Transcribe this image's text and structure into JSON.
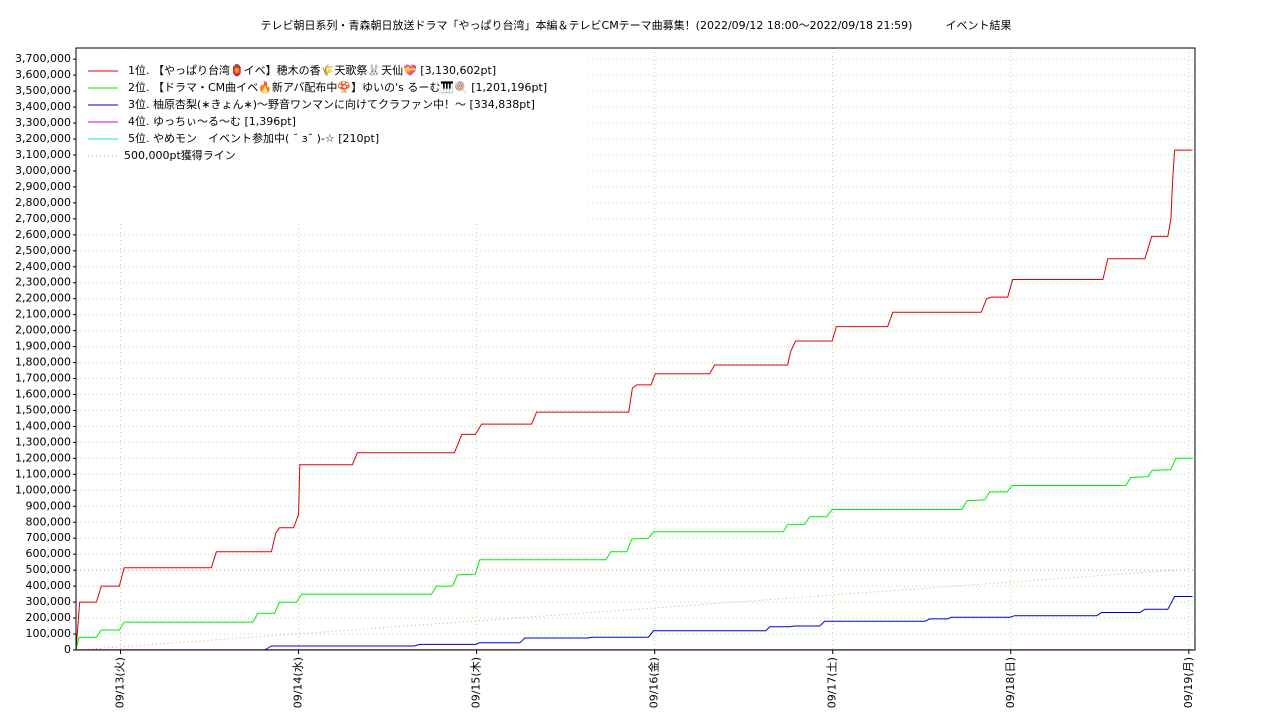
{
  "chart_data": {
    "type": "line",
    "title": "テレビ朝日系列・青森朝日放送ドラマ「やっぱり台湾」本編＆テレビCMテーマ曲募集！(2022/09/12 18:00～2022/09/18 21:59)　　　イベント結果",
    "xlim": [
      "09/12 18:00",
      "09/19 00:50"
    ],
    "xticks": [
      {
        "value": "09/13 00:00",
        "label": "09/13(火)"
      },
      {
        "value": "09/14 00:00",
        "label": "09/14(水)"
      },
      {
        "value": "09/15 00:00",
        "label": "09/15(木)"
      },
      {
        "value": "09/16 00:00",
        "label": "09/16(金)"
      },
      {
        "value": "09/17 00:00",
        "label": "09/17(土)"
      },
      {
        "value": "09/18 00:00",
        "label": "09/18(日)"
      },
      {
        "value": "09/19 00:00",
        "label": "09/19(月)"
      }
    ],
    "ylim": [
      0,
      3770000
    ],
    "yticks": [
      0,
      {
        "value": 100000,
        "label": "100,000"
      },
      {
        "value": 200000,
        "label": "200,000"
      },
      {
        "value": 300000,
        "label": "300,000"
      },
      {
        "value": 400000,
        "label": "400,000"
      },
      {
        "value": 500000,
        "label": "500,000"
      },
      {
        "value": 600000,
        "label": "600,000"
      },
      {
        "value": 700000,
        "label": "700,000"
      },
      {
        "value": 800000,
        "label": "800,000"
      },
      {
        "value": 900000,
        "label": "900,000"
      },
      {
        "value": 1000000,
        "label": "1,000,000"
      },
      {
        "value": 1100000,
        "label": "1,100,000"
      },
      {
        "value": 1200000,
        "label": "1,200,000"
      },
      {
        "value": 1300000,
        "label": "1,300,000"
      },
      {
        "value": 1400000,
        "label": "1,400,000"
      },
      {
        "value": 1500000,
        "label": "1,500,000"
      },
      {
        "value": 1600000,
        "label": "1,600,000"
      },
      {
        "value": 1700000,
        "label": "1,700,000"
      },
      {
        "value": 1800000,
        "label": "1,800,000"
      },
      {
        "value": 1900000,
        "label": "1,900,000"
      },
      {
        "value": 2000000,
        "label": "2,000,000"
      },
      {
        "value": 2100000,
        "label": "2,100,000"
      },
      {
        "value": 2200000,
        "label": "2,200,000"
      },
      {
        "value": 2300000,
        "label": "2,300,000"
      },
      {
        "value": 2400000,
        "label": "2,400,000"
      },
      {
        "value": 2500000,
        "label": "2,500,000"
      },
      {
        "value": 2600000,
        "label": "2,600,000"
      },
      {
        "value": 2700000,
        "label": "2,700,000"
      },
      {
        "value": 2800000,
        "label": "2,800,000"
      },
      {
        "value": 2900000,
        "label": "2,900,000"
      },
      {
        "value": 3000000,
        "label": "3,000,000"
      },
      {
        "value": 3100000,
        "label": "3,100,000"
      },
      {
        "value": 3200000,
        "label": "3,200,000"
      },
      {
        "value": 3300000,
        "label": "3,300,000"
      },
      {
        "value": 3400000,
        "label": "3,400,000"
      },
      {
        "value": 3500000,
        "label": "3,500,000"
      },
      {
        "value": 3600000,
        "label": "3,600,000"
      },
      {
        "value": 3700000,
        "label": "3,700,000"
      }
    ],
    "grid": true,
    "reference_line": {
      "value": 500000,
      "color": "#e8a070"
    },
    "series": [
      {
        "name": "1位. 【やっぱり台湾🏮イベ】穂木の香🌾天歌祭🐰天仙💝 [3,130,602pt]",
        "color": "#e00000",
        "x": [
          "09/12 18:00",
          "09/12 18:30",
          "09/12 20:45",
          "09/12 21:25",
          "09/12 23:50",
          "09/13 00:30",
          "09/13 12:15",
          "09/13 12:55",
          "09/13 20:20",
          "09/13 20:55",
          "09/13 21:25",
          "09/13 23:20",
          "09/14 00:00",
          "09/14 00:10",
          "09/14 07:15",
          "09/14 07:55",
          "09/14 21:00",
          "09/14 22:00",
          "09/14 23:50",
          "09/15 00:40",
          "09/15 07:25",
          "09/15 08:05",
          "09/15 20:30",
          "09/15 21:00",
          "09/15 21:35",
          "09/15 23:30",
          "09/16 00:05",
          "09/16 07:25",
          "09/16 08:05",
          "09/16 17:55",
          "09/16 18:20",
          "09/16 19:00",
          "09/16 23:55",
          "09/17 00:30",
          "09/17 07:25",
          "09/17 08:05",
          "09/17 20:00",
          "09/17 20:45",
          "09/17 21:20",
          "09/17 23:35",
          "09/18 00:15",
          "09/18 12:25",
          "09/18 13:05",
          "09/18 18:05",
          "09/18 19:00",
          "09/18 21:10",
          "09/18 21:35",
          "09/18 21:50",
          "09/18 22:05",
          "09/19 00:30"
        ],
        "values": [
          0,
          300000,
          300000,
          400000,
          400000,
          515000,
          515000,
          615000,
          615000,
          730000,
          765000,
          765000,
          850000,
          1160000,
          1160000,
          1235000,
          1235000,
          1350000,
          1350000,
          1415000,
          1415000,
          1490000,
          1490000,
          1640000,
          1660000,
          1660000,
          1730000,
          1730000,
          1785000,
          1785000,
          1870000,
          1935000,
          1935000,
          2025000,
          2025000,
          2115000,
          2115000,
          2200000,
          2210000,
          2210000,
          2320000,
          2320000,
          2450000,
          2450000,
          2590000,
          2590000,
          2700000,
          2950000,
          3130602,
          3130602
        ]
      },
      {
        "name": "2位. 【ドラマ・CM曲イベ🔥新アバ配布中🍄】ゆいの's るーむ🎹🍭 [1,201,196pt]",
        "color": "#00ee00",
        "x": [
          "09/12 18:00",
          "09/12 18:25",
          "09/12 20:45",
          "09/12 21:25",
          "09/12 23:50",
          "09/13 00:30",
          "09/13 17:50",
          "09/13 18:30",
          "09/13 20:45",
          "09/13 21:25",
          "09/13 23:45",
          "09/14 00:25",
          "09/14 17:55",
          "09/14 18:35",
          "09/14 20:45",
          "09/14 21:25",
          "09/14 23:50",
          "09/15 00:25",
          "09/15 17:25",
          "09/15 18:05",
          "09/15 20:15",
          "09/15 20:55",
          "09/15 23:10",
          "09/15 23:50",
          "09/16 17:20",
          "09/16 17:55",
          "09/16 20:10",
          "09/16 20:55",
          "09/16 23:10",
          "09/16 23:55",
          "09/17 17:25",
          "09/17 18:05",
          "09/17 20:30",
          "09/17 21:10",
          "09/17 23:30",
          "09/18 00:10",
          "09/18 15:30",
          "09/18 16:10",
          "09/18 18:30",
          "09/18 19:05",
          "09/18 21:35",
          "09/18 22:15",
          "09/19 00:30"
        ],
        "values": [
          0,
          80000,
          80000,
          125000,
          125000,
          175000,
          175000,
          230000,
          230000,
          300000,
          300000,
          350000,
          350000,
          400000,
          400000,
          470000,
          475000,
          565000,
          565000,
          615000,
          615000,
          695000,
          700000,
          740000,
          740000,
          785000,
          785000,
          835000,
          835000,
          880000,
          880000,
          935000,
          940000,
          990000,
          990000,
          1030000,
          1030000,
          1080000,
          1085000,
          1125000,
          1130000,
          1201196,
          1201196
        ]
      },
      {
        "name": "3位. 柚原杏梨(∗きょん∗)〜野音ワンマンに向けてクラファン中！〜 [334,838pt]",
        "color": "#0000cc",
        "x": [
          "09/12 18:00",
          "09/13 19:25",
          "09/13 20:20",
          "09/14 15:35",
          "09/14 16:20",
          "09/14 23:50",
          "09/15 00:25",
          "09/15 05:50",
          "09/15 06:30",
          "09/15 15:00",
          "09/15 15:30",
          "09/15 23:10",
          "09/15 23:50",
          "09/16 15:00",
          "09/16 15:30",
          "09/16 18:10",
          "09/16 18:50",
          "09/16 22:15",
          "09/16 22:55",
          "09/17 12:25",
          "09/17 13:05",
          "09/17 15:30",
          "09/17 16:00",
          "09/17 23:55",
          "09/18 00:30",
          "09/18 11:35",
          "09/18 12:15",
          "09/18 17:25",
          "09/18 18:05",
          "09/18 21:10",
          "09/18 22:05",
          "09/19 00:30"
        ],
        "values": [
          0,
          0,
          25000,
          25000,
          35000,
          35000,
          45000,
          45000,
          75000,
          75000,
          80000,
          80000,
          120000,
          120000,
          145000,
          145000,
          150000,
          150000,
          180000,
          180000,
          195000,
          195000,
          205000,
          205000,
          215000,
          215000,
          235000,
          235000,
          255000,
          255000,
          334838,
          334838
        ]
      },
      {
        "name": "4位. ゆっちぃ〜る〜む [1,396pt]",
        "color": "#cc00cc",
        "x": [
          "09/12 18:00",
          "09/12 18:30",
          "09/19 00:30"
        ],
        "values": [
          0,
          1396,
          1396
        ]
      },
      {
        "name": "5位. やめモン　イベント参加中( ˘ ɜ˘ )-☆ [210pt]",
        "color": "#00eeee",
        "x": [
          "09/12 18:00",
          "09/12 18:30",
          "09/19 00:30"
        ],
        "values": [
          0,
          210,
          210
        ]
      },
      {
        "name": "500,000pt獲得ライン",
        "color": "#e8a070",
        "dotted": true,
        "x": [
          "09/12 18:00",
          "09/18 22:00"
        ],
        "values": [
          0,
          500000
        ]
      }
    ]
  }
}
